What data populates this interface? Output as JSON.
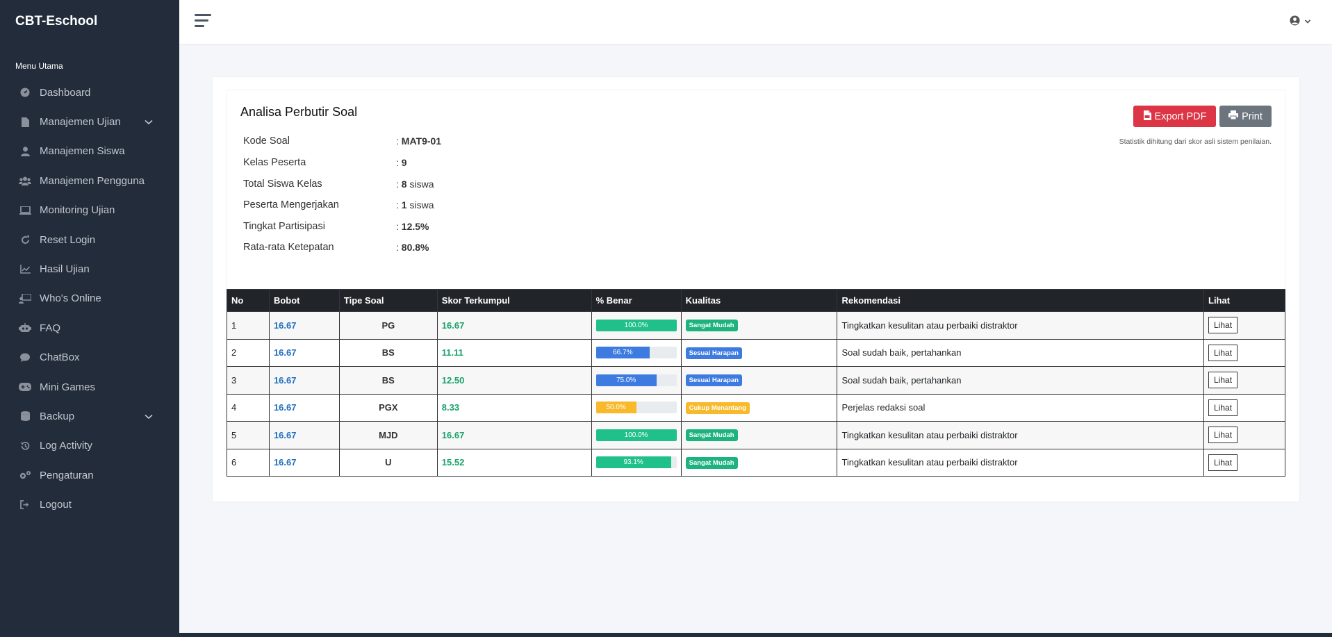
{
  "app": {
    "brand": "CBT-Eschool"
  },
  "sidebar": {
    "section_title": "Menu Utama",
    "items": [
      {
        "label": "Dashboard",
        "icon": "dashboard-icon"
      },
      {
        "label": "Manajemen Ujian",
        "icon": "file-icon",
        "has_children": true
      },
      {
        "label": "Manajemen Siswa",
        "icon": "user-icon"
      },
      {
        "label": "Manajemen Pengguna",
        "icon": "users-icon"
      },
      {
        "label": "Monitoring Ujian",
        "icon": "laptop-icon"
      },
      {
        "label": "Reset Login",
        "icon": "redo-icon"
      },
      {
        "label": "Hasil Ujian",
        "icon": "chart-line-icon"
      },
      {
        "label": "Who's Online",
        "icon": "chalkboard-user-icon"
      },
      {
        "label": "FAQ",
        "icon": "robot-icon"
      },
      {
        "label": "ChatBox",
        "icon": "comment-icon"
      },
      {
        "label": "Mini Games",
        "icon": "gamepad-icon"
      },
      {
        "label": "Backup",
        "icon": "database-icon",
        "has_children": true
      },
      {
        "label": "Log Activity",
        "icon": "history-icon"
      },
      {
        "label": "Pengaturan",
        "icon": "cogs-icon"
      },
      {
        "label": "Logout",
        "icon": "sign-out-icon"
      }
    ]
  },
  "page": {
    "title": "Analisa Perbutir Soal",
    "info": [
      {
        "label": "Kode Soal",
        "value": "MAT9-01",
        "suffix": ""
      },
      {
        "label": "Kelas Peserta",
        "value": "9",
        "suffix": ""
      },
      {
        "label": "Total Siswa Kelas",
        "value": "8",
        "suffix": " siswa"
      },
      {
        "label": "Peserta Mengerjakan",
        "value": "1",
        "suffix": " siswa"
      },
      {
        "label": "Tingkat Partisipasi",
        "value": "12.5%",
        "suffix": ""
      },
      {
        "label": "Rata-rata Ketepatan",
        "value": "80.8%",
        "suffix": ""
      }
    ],
    "export_pdf_label": "Export PDF",
    "print_label": "Print",
    "stat_note": "Statistik dihitung dari skor asli sistem penilaian."
  },
  "table": {
    "headers": [
      "No",
      "Bobot",
      "Tipe Soal",
      "Skor Terkumpul",
      "% Benar",
      "Kualitas",
      "Rekomendasi",
      "Lihat"
    ],
    "rows": [
      {
        "no": "1",
        "bobot": "16.67",
        "tipe": "PG",
        "skor": "16.67",
        "benar_label": "100.0%",
        "benar": 1.0,
        "bar_color": "#20c08a",
        "kualitas": "Sangat Mudah",
        "kualitas_color": "#1db37f",
        "rekomendasi": "Tingkatkan kesulitan atau perbaiki distraktor",
        "lihat": "Lihat"
      },
      {
        "no": "2",
        "bobot": "16.67",
        "tipe": "BS",
        "skor": "11.11",
        "benar_label": "66.7%",
        "benar": 0.667,
        "bar_color": "#3d7be0",
        "kualitas": "Sesuai Harapan",
        "kualitas_color": "#3d7be0",
        "rekomendasi": "Soal sudah baik, pertahankan",
        "lihat": "Lihat"
      },
      {
        "no": "3",
        "bobot": "16.67",
        "tipe": "BS",
        "skor": "12.50",
        "benar_label": "75.0%",
        "benar": 0.75,
        "bar_color": "#3d7be0",
        "kualitas": "Sesuai Harapan",
        "kualitas_color": "#3d7be0",
        "rekomendasi": "Soal sudah baik, pertahankan",
        "lihat": "Lihat"
      },
      {
        "no": "4",
        "bobot": "16.67",
        "tipe": "PGX",
        "skor": "8.33",
        "benar_label": "50.0%",
        "benar": 0.5,
        "bar_color": "#f8b92b",
        "kualitas": "Cukup Menantang",
        "kualitas_color": "#f8b92b",
        "rekomendasi": "Perjelas redaksi soal",
        "lihat": "Lihat"
      },
      {
        "no": "5",
        "bobot": "16.67",
        "tipe": "MJD",
        "skor": "16.67",
        "benar_label": "100.0%",
        "benar": 1.0,
        "bar_color": "#20c08a",
        "kualitas": "Sangat Mudah",
        "kualitas_color": "#1db37f",
        "rekomendasi": "Tingkatkan kesulitan atau perbaiki distraktor",
        "lihat": "Lihat"
      },
      {
        "no": "6",
        "bobot": "16.67",
        "tipe": "U",
        "skor": "15.52",
        "benar_label": "93.1%",
        "benar": 0.931,
        "bar_color": "#20c08a",
        "kualitas": "Sangat Mudah",
        "kualitas_color": "#1db37f",
        "rekomendasi": "Tingkatkan kesulitan atau perbaiki distraktor",
        "lihat": "Lihat"
      }
    ]
  }
}
